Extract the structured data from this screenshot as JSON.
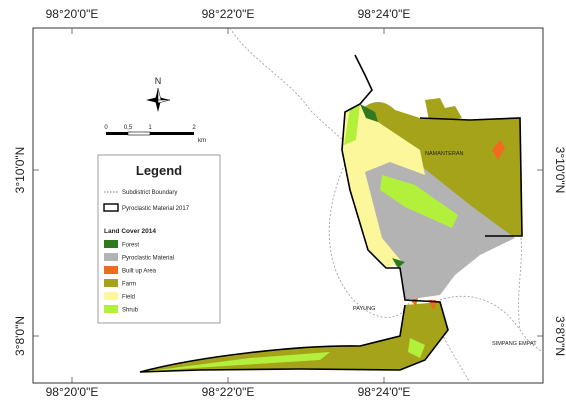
{
  "grid_labels": {
    "top": [
      "98°20'0\"E",
      "98°22'0\"E",
      "98°24'0\"E"
    ],
    "bottom": [
      "98°20'0\"E",
      "98°22'0\"E",
      "98°24'0\"E"
    ],
    "left": [
      "3°10'0\"N",
      "3°8'0\"N"
    ],
    "right": [
      "3°10'0\"N",
      "3°8'0\"N"
    ]
  },
  "north_arrow": {
    "label": "N"
  },
  "scale_bar": {
    "labels": [
      "0",
      "0,5",
      "1",
      "2"
    ],
    "unit": "km"
  },
  "legend": {
    "title": "Legend",
    "boundaries": [
      "Subdistrict Boundary",
      "Pyroclastic Material 2017"
    ],
    "land_cover_title": "Land Cover 2014",
    "classes": [
      {
        "label": "Forest",
        "color": "#2f7a1f"
      },
      {
        "label": "Pyroclastic Material",
        "color": "#b3b3b3"
      },
      {
        "label": "Built up Area",
        "color": "#f26a1b"
      },
      {
        "label": "Farm",
        "color": "#a5a31a"
      },
      {
        "label": "Field",
        "color": "#fbf79a"
      },
      {
        "label": "Shrub",
        "color": "#b2f03c"
      }
    ]
  },
  "places": [
    "NAMANTERAN",
    "PAYUNG",
    "SIMPANG EMPAT"
  ]
}
